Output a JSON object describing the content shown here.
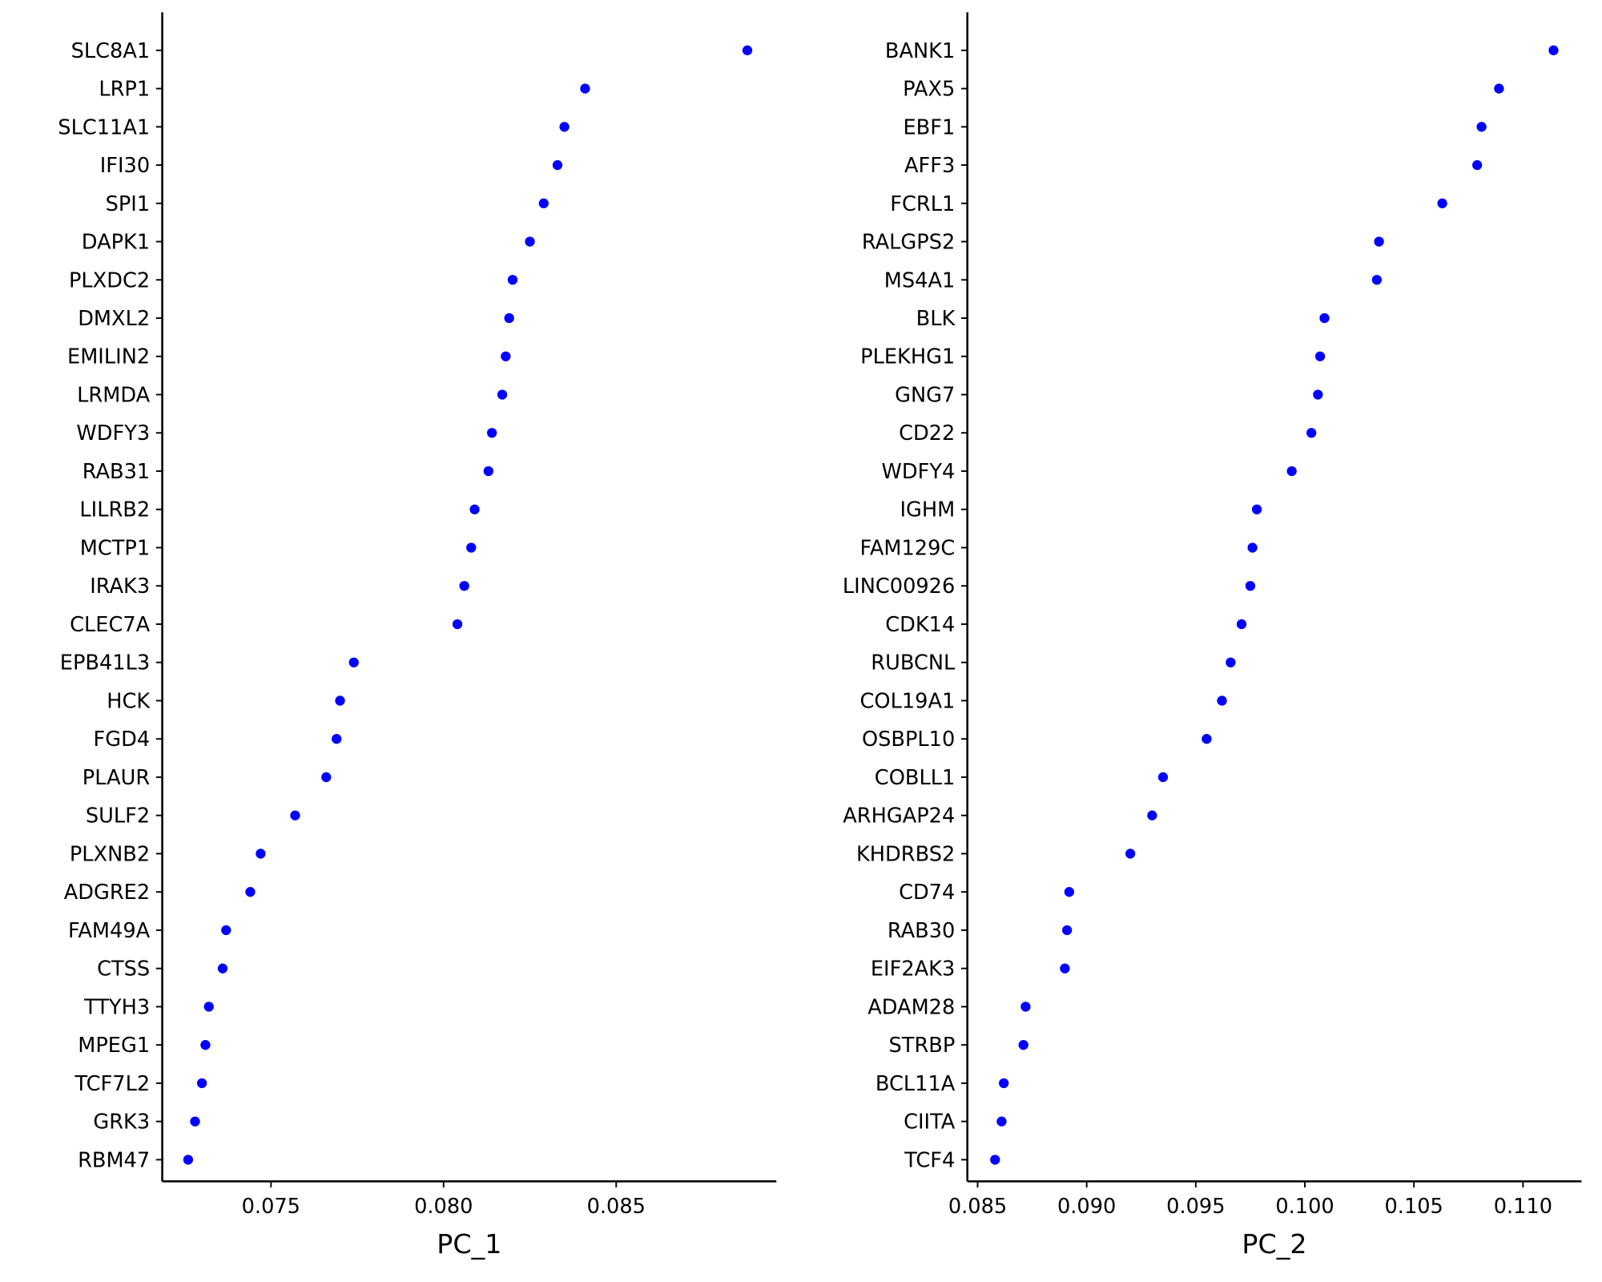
{
  "chart_data": [
    {
      "type": "scatter",
      "xlabel": "PC_1",
      "ylabel": "",
      "xlim": [
        0.07185,
        0.08964
      ],
      "xticks": [
        "0.075",
        "0.080",
        "0.085"
      ],
      "xtick_values": [
        0.075,
        0.08,
        0.085
      ],
      "grid": false,
      "point_color": "#0000ff",
      "categories": [
        "SLC8A1",
        "LRP1",
        "SLC11A1",
        "IFI30",
        "SPI1",
        "DAPK1",
        "PLXDC2",
        "DMXL2",
        "EMILIN2",
        "LRMDA",
        "WDFY3",
        "RAB31",
        "LILRB2",
        "MCTP1",
        "IRAK3",
        "CLEC7A",
        "EPB41L3",
        "HCK",
        "FGD4",
        "PLAUR",
        "SULF2",
        "PLXNB2",
        "ADGRE2",
        "FAM49A",
        "CTSS",
        "TTYH3",
        "MPEG1",
        "TCF7L2",
        "GRK3",
        "RBM47"
      ],
      "values": [
        0.0888,
        0.0841,
        0.0835,
        0.0833,
        0.0829,
        0.0825,
        0.082,
        0.0819,
        0.0818,
        0.0817,
        0.0814,
        0.0813,
        0.0809,
        0.0808,
        0.0806,
        0.0804,
        0.0774,
        0.077,
        0.0769,
        0.0766,
        0.0757,
        0.0747,
        0.0744,
        0.0737,
        0.0736,
        0.0732,
        0.0731,
        0.073,
        0.0728,
        0.0726
      ]
    },
    {
      "type": "scatter",
      "xlabel": "PC_2",
      "ylabel": "",
      "xlim": [
        0.08453,
        0.11268
      ],
      "xticks": [
        "0.085",
        "0.090",
        "0.095",
        "0.100",
        "0.105",
        "0.110"
      ],
      "xtick_values": [
        0.085,
        0.09,
        0.095,
        0.1,
        0.105,
        0.11
      ],
      "grid": false,
      "point_color": "#0000ff",
      "categories": [
        "BANK1",
        "PAX5",
        "EBF1",
        "AFF3",
        "FCRL1",
        "RALGPS2",
        "MS4A1",
        "BLK",
        "PLEKHG1",
        "GNG7",
        "CD22",
        "WDFY4",
        "IGHM",
        "FAM129C",
        "LINC00926",
        "CDK14",
        "RUBCNL",
        "COL19A1",
        "OSBPL10",
        "COBLL1",
        "ARHGAP24",
        "KHDRBS2",
        "CD74",
        "RAB30",
        "EIF2AK3",
        "ADAM28",
        "STRBP",
        "BCL11A",
        "CIITA",
        "TCF4"
      ],
      "values": [
        0.1114,
        0.1089,
        0.1081,
        0.1079,
        0.1063,
        0.1034,
        0.1033,
        0.1009,
        0.1007,
        0.1006,
        0.1003,
        0.0994,
        0.0978,
        0.0976,
        0.0975,
        0.0971,
        0.0966,
        0.0962,
        0.0955,
        0.0935,
        0.093,
        0.092,
        0.0892,
        0.0891,
        0.089,
        0.0872,
        0.0871,
        0.0862,
        0.0861,
        0.0858
      ]
    }
  ]
}
